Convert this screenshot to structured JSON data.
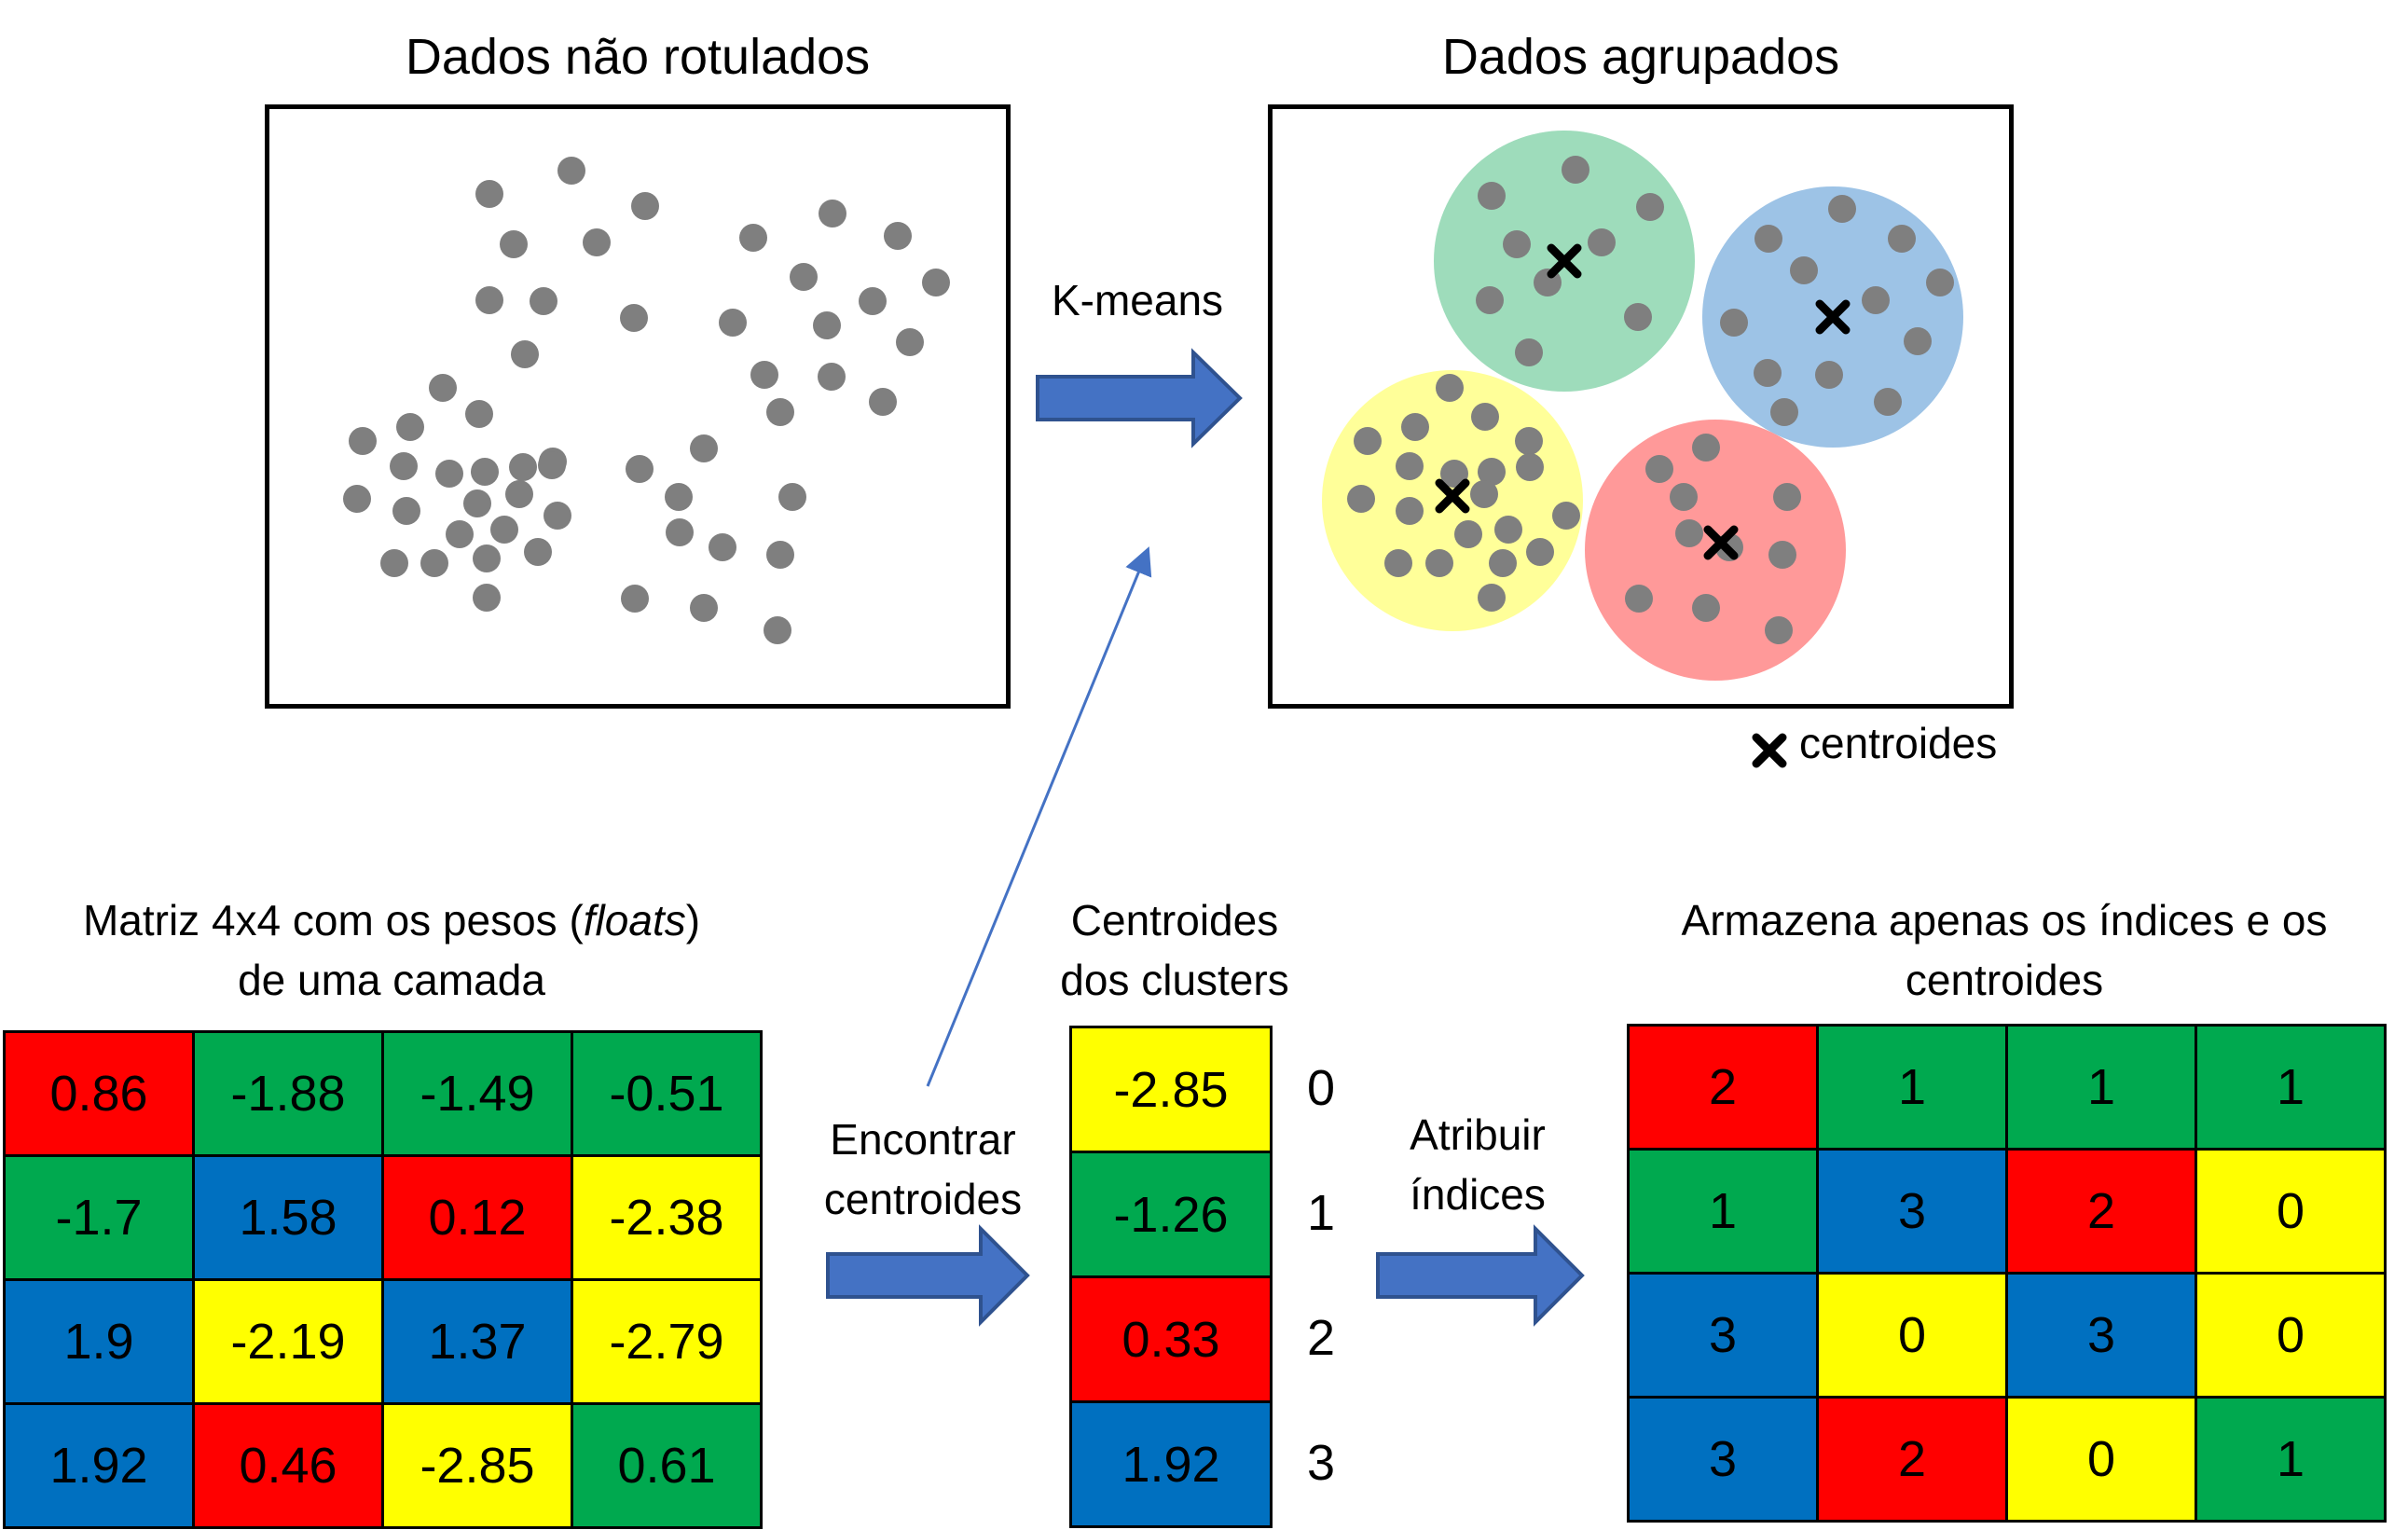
{
  "top_left": {
    "title": "Dados não rotulados"
  },
  "top_right": {
    "title": "Dados agrupados",
    "legend": "centroides"
  },
  "kmeans_label": "K-means",
  "matrix_section": {
    "title_pre": "Matriz 4x4 com os pesos (",
    "title_em": "floats",
    "title_post": ")",
    "subtitle": "de uma camada"
  },
  "find_label": {
    "line1": "Encontrar",
    "line2": "centroides"
  },
  "centroid_section": {
    "line1": "Centroides",
    "line2": "dos clusters"
  },
  "assign_label": {
    "line1": "Atribuir",
    "line2": "índices"
  },
  "store_section": {
    "line1": "Armazena apenas os índices e os",
    "line2": "centroides"
  },
  "colors": {
    "red": "#ff0000",
    "green": "#00a94f",
    "blue": "#0070c0",
    "yellow": "#ffff00",
    "dot": "#7f7f7f",
    "arrow": "#4472c4"
  },
  "weights": [
    [
      {
        "v": "0.86",
        "c": "red"
      },
      {
        "v": "-1.88",
        "c": "green"
      },
      {
        "v": "-1.49",
        "c": "green"
      },
      {
        "v": "-0.51",
        "c": "green"
      }
    ],
    [
      {
        "v": "-1.7",
        "c": "green"
      },
      {
        "v": "1.58",
        "c": "blue"
      },
      {
        "v": "0.12",
        "c": "red"
      },
      {
        "v": "-2.38",
        "c": "yellow"
      }
    ],
    [
      {
        "v": "1.9",
        "c": "blue"
      },
      {
        "v": "-2.19",
        "c": "yellow"
      },
      {
        "v": "1.37",
        "c": "blue"
      },
      {
        "v": "-2.79",
        "c": "yellow"
      }
    ],
    [
      {
        "v": "1.92",
        "c": "blue"
      },
      {
        "v": "0.46",
        "c": "red"
      },
      {
        "v": "-2.85",
        "c": "yellow"
      },
      {
        "v": "0.61",
        "c": "green"
      }
    ]
  ],
  "centroids": [
    {
      "v": "-2.85",
      "c": "yellow",
      "i": "0"
    },
    {
      "v": "-1.26",
      "c": "green",
      "i": "1"
    },
    {
      "v": "0.33",
      "c": "red",
      "i": "2"
    },
    {
      "v": "1.92",
      "c": "blue",
      "i": "3"
    }
  ],
  "indices": [
    [
      {
        "v": "2",
        "c": "red"
      },
      {
        "v": "1",
        "c": "green"
      },
      {
        "v": "1",
        "c": "green"
      },
      {
        "v": "1",
        "c": "green"
      }
    ],
    [
      {
        "v": "1",
        "c": "green"
      },
      {
        "v": "3",
        "c": "blue"
      },
      {
        "v": "2",
        "c": "red"
      },
      {
        "v": "0",
        "c": "yellow"
      }
    ],
    [
      {
        "v": "3",
        "c": "blue"
      },
      {
        "v": "0",
        "c": "yellow"
      },
      {
        "v": "3",
        "c": "blue"
      },
      {
        "v": "0",
        "c": "yellow"
      }
    ],
    [
      {
        "v": "3",
        "c": "blue"
      },
      {
        "v": "2",
        "c": "red"
      },
      {
        "v": "0",
        "c": "yellow"
      },
      {
        "v": "1",
        "c": "green"
      }
    ]
  ]
}
